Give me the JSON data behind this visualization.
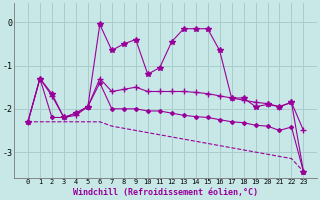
{
  "xlabel": "Windchill (Refroidissement éolien,°C)",
  "x": [
    0,
    1,
    2,
    3,
    4,
    5,
    6,
    7,
    8,
    9,
    10,
    11,
    12,
    13,
    14,
    15,
    16,
    17,
    18,
    19,
    20,
    21,
    22,
    23
  ],
  "line1": [
    -2.3,
    -1.3,
    -1.65,
    -2.2,
    -2.1,
    -1.95,
    -0.05,
    -0.65,
    -0.5,
    -0.4,
    -1.2,
    -1.05,
    -0.45,
    -0.15,
    -0.15,
    -0.15,
    -0.65,
    -1.75,
    -1.75,
    -1.95,
    -1.9,
    -1.95,
    -1.85,
    -3.45
  ],
  "line2": [
    -2.3,
    -1.3,
    -1.7,
    -2.2,
    -2.15,
    -1.95,
    -1.3,
    -1.6,
    -1.55,
    -1.5,
    -1.6,
    -1.6,
    -1.6,
    -1.6,
    -1.62,
    -1.65,
    -1.7,
    -1.75,
    -1.8,
    -1.85,
    -1.88,
    -1.95,
    -1.85,
    -2.5
  ],
  "line3": [
    -2.3,
    -1.3,
    -2.2,
    -2.2,
    -2.1,
    -1.95,
    -1.4,
    -2.0,
    -2.0,
    -2.0,
    -2.05,
    -2.05,
    -2.1,
    -2.15,
    -2.18,
    -2.2,
    -2.25,
    -2.3,
    -2.32,
    -2.38,
    -2.4,
    -2.5,
    -2.42,
    -3.45
  ],
  "line4": [
    -2.3,
    -2.3,
    -2.3,
    -2.3,
    -2.3,
    -2.3,
    -2.3,
    -2.4,
    -2.45,
    -2.5,
    -2.55,
    -2.6,
    -2.65,
    -2.7,
    -2.75,
    -2.8,
    -2.85,
    -2.9,
    -2.95,
    -3.0,
    -3.05,
    -3.1,
    -3.15,
    -3.45
  ],
  "bg_color": "#c8e8e8",
  "line_color": "#990099",
  "grid_color": "#aacccc",
  "ylim": [
    -3.6,
    0.45
  ],
  "yticks": [
    0,
    -1,
    -2,
    -3
  ],
  "xticks": [
    0,
    1,
    2,
    3,
    4,
    5,
    6,
    7,
    8,
    9,
    10,
    11,
    12,
    13,
    14,
    15,
    16,
    17,
    18,
    19,
    20,
    21,
    22,
    23
  ]
}
